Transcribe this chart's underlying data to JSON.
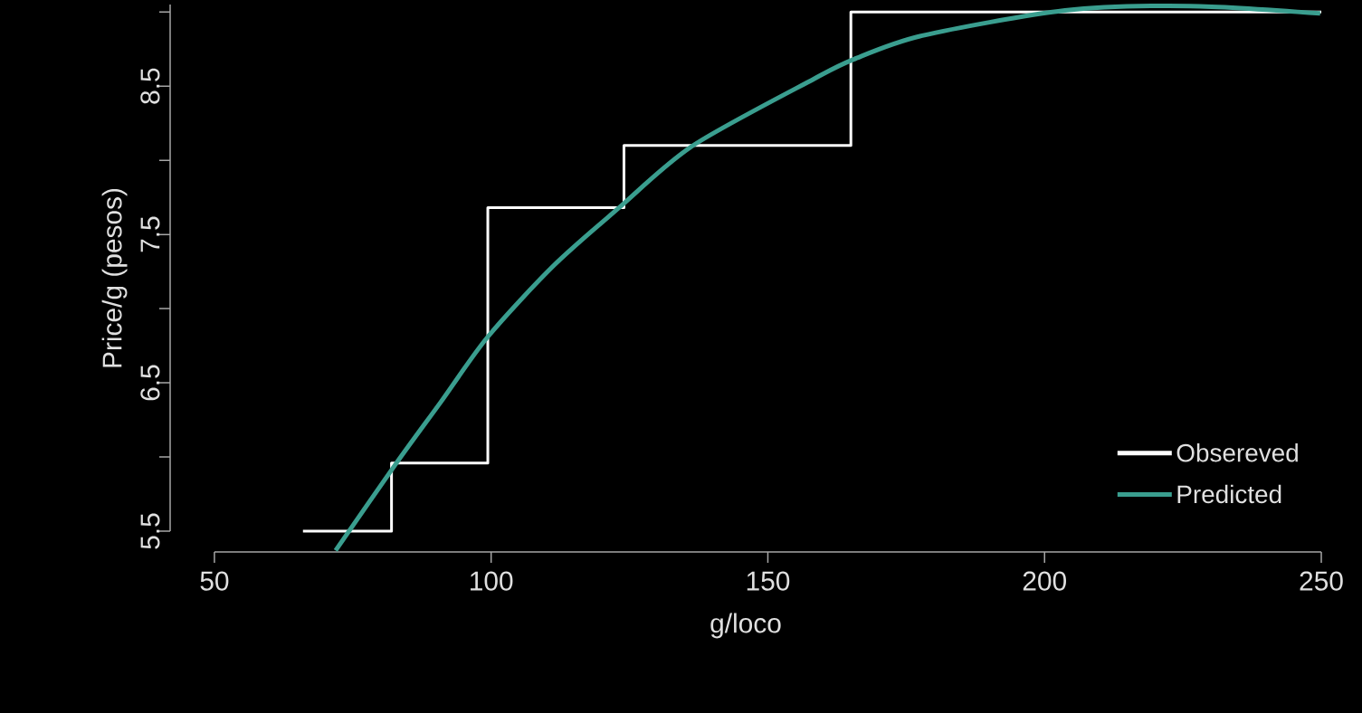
{
  "chart_data": {
    "type": "line",
    "xlabel": "g/loco",
    "ylabel": "Price/g (pesos)",
    "xlim": [
      42,
      250
    ],
    "ylim": [
      5.36,
      9.05
    ],
    "xticks": [
      50,
      100,
      150,
      200,
      250
    ],
    "yticks": [
      5.5,
      {
        "value": 6,
        "label": null
      },
      6.5,
      {
        "value": 7,
        "label": null
      },
      7.5,
      {
        "value": 8,
        "label": null
      },
      8.5,
      {
        "value": 9,
        "label": null
      }
    ],
    "legend": "bottom right",
    "grid": false,
    "series": [
      {
        "name": "Obsereved",
        "type": "step",
        "color": "#ffffff",
        "x": [
          66,
          82,
          99.4,
          124,
          165,
          250
        ],
        "values": [
          5.5,
          5.96,
          7.68,
          8.1,
          9.0,
          9.0
        ]
      },
      {
        "name": "Predicted",
        "color": "#3a9e8f",
        "x": [
          71.9,
          82.9,
          90.9,
          99.4,
          111.3,
          123.1,
          136.5,
          158.4,
          165.5,
          177.9,
          203.7,
          226.3,
          249.8
        ],
        "values": [
          5.37,
          5.96,
          6.37,
          6.81,
          7.29,
          7.68,
          8.1,
          8.55,
          8.68,
          8.84,
          9.01,
          9.04,
          8.99
        ]
      }
    ]
  }
}
